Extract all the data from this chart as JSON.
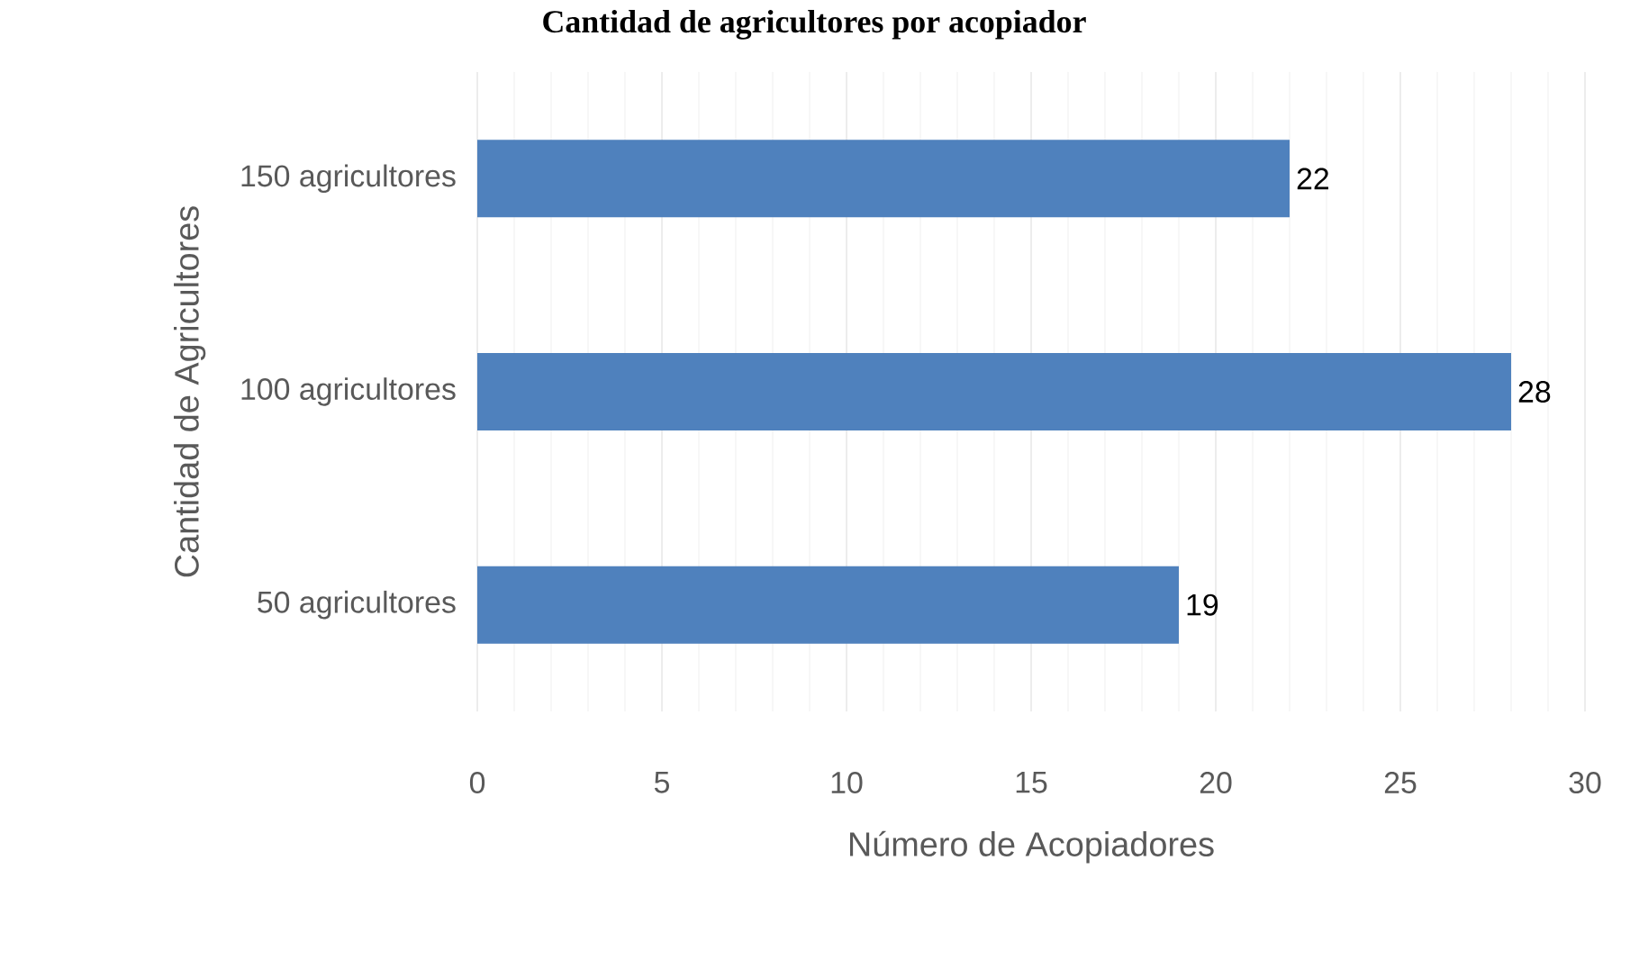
{
  "chart_data": {
    "type": "bar",
    "orientation": "horizontal",
    "title": "Cantidad de agricultores por acopiador",
    "xlabel": "Número de Acopiadores",
    "ylabel": "Cantidad de Agricultores",
    "categories": [
      "150 agricultores",
      "100 agricultores",
      "50 agricultores"
    ],
    "values": [
      22,
      28,
      19
    ],
    "color": "#4f81bd",
    "data_labels": true,
    "grid": "x",
    "xlim": [
      0,
      30
    ],
    "xticks": [
      0,
      5,
      10,
      15,
      20,
      25,
      30
    ]
  }
}
